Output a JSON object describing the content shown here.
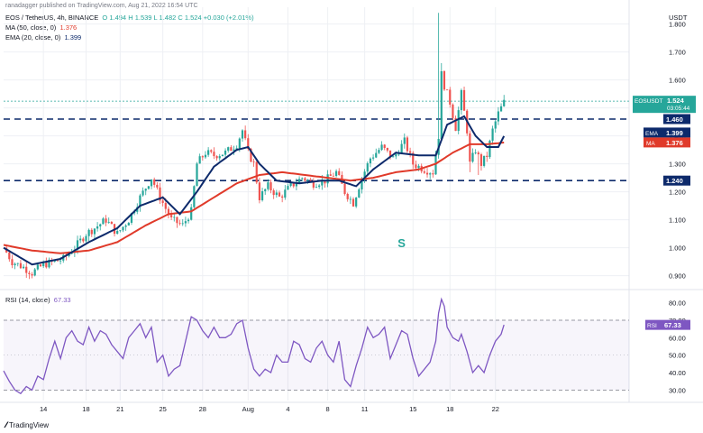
{
  "attribution": "ranadagger published on TradingView.com, Aug 21, 2022 16:54 UTC",
  "legend": {
    "symbol": "EOS / TetherUS, 4h, BINANCE",
    "ohlc": "O 1.494 H 1.539 L 1.482 C 1.524 +0.030 (+2.01%)",
    "ma": "MA (50, close, 0)",
    "ma_value": "1.376",
    "ema": "EMA (20, close, 0)",
    "ema_value": "1.399",
    "rsi": "RSI (14, close)",
    "rsi_value": "67.33"
  },
  "watermark": "TradingView",
  "colors": {
    "up": "#26a69a",
    "down": "#ef5350",
    "ema": "#0d2a6b",
    "ma": "#e03a2a",
    "rsi": "#7e57c2",
    "hline": "#0d2a6b",
    "grid": "#eef0f4",
    "axis_text": "#131722"
  },
  "chart_data": [
    {
      "type": "candlestick",
      "currency": "USDT",
      "yticks": [
        "0.900",
        "1.000",
        "1.100",
        "1.200",
        "1.300",
        "1.400",
        "1.500",
        "1.600",
        "1.700",
        "1.800"
      ],
      "ylim": [
        0.86,
        1.86
      ],
      "xticks": [
        "14",
        "18",
        "21",
        "25",
        "28",
        "Aug",
        "4",
        "8",
        "11",
        "15",
        "18",
        "22"
      ],
      "xlim": [
        0,
        220
      ],
      "xtick_positions": [
        14,
        29,
        41,
        56,
        70,
        86,
        100,
        114,
        127,
        144,
        157,
        173
      ],
      "grid": true,
      "annotation": "S",
      "horizontal_lines": [
        {
          "value": 1.46,
          "label": "1.460",
          "style": "dashed"
        },
        {
          "value": 1.24,
          "label": "1.240",
          "style": "dashed"
        }
      ],
      "price_label": {
        "name": "EOSUSDT",
        "value": "1.524",
        "countdown": "03:05:44"
      },
      "ema_label": {
        "name": "EMA",
        "value": "1.399"
      },
      "ma_label": {
        "name": "MA",
        "value": "1.376"
      },
      "close_anchors": [
        [
          0,
          1.0
        ],
        [
          3,
          0.95
        ],
        [
          7,
          0.93
        ],
        [
          10,
          0.91
        ],
        [
          14,
          0.94
        ],
        [
          18,
          0.95
        ],
        [
          21,
          0.96
        ],
        [
          25,
          1.0
        ],
        [
          29,
          1.05
        ],
        [
          32,
          1.07
        ],
        [
          36,
          1.1
        ],
        [
          40,
          1.05
        ],
        [
          44,
          1.1
        ],
        [
          48,
          1.18
        ],
        [
          52,
          1.25
        ],
        [
          55,
          1.18
        ],
        [
          59,
          1.1
        ],
        [
          63,
          1.08
        ],
        [
          66,
          1.13
        ],
        [
          68,
          1.3
        ],
        [
          71,
          1.34
        ],
        [
          74,
          1.33
        ],
        [
          78,
          1.34
        ],
        [
          82,
          1.37
        ],
        [
          84,
          1.42
        ],
        [
          86,
          1.34
        ],
        [
          88,
          1.3
        ],
        [
          90,
          1.18
        ],
        [
          93,
          1.22
        ],
        [
          97,
          1.18
        ],
        [
          101,
          1.22
        ],
        [
          105,
          1.25
        ],
        [
          109,
          1.23
        ],
        [
          113,
          1.24
        ],
        [
          117,
          1.27
        ],
        [
          120,
          1.2
        ],
        [
          123,
          1.16
        ],
        [
          126,
          1.25
        ],
        [
          129,
          1.32
        ],
        [
          133,
          1.36
        ],
        [
          137,
          1.32
        ],
        [
          141,
          1.38
        ],
        [
          144,
          1.3
        ],
        [
          148,
          1.28
        ],
        [
          151,
          1.27
        ],
        [
          153,
          1.4
        ],
        [
          154,
          1.62
        ],
        [
          155,
          1.58
        ],
        [
          157,
          1.52
        ],
        [
          159,
          1.43
        ],
        [
          161,
          1.55
        ],
        [
          163,
          1.42
        ],
        [
          164,
          1.3
        ],
        [
          166,
          1.35
        ],
        [
          168,
          1.3
        ],
        [
          170,
          1.33
        ],
        [
          172,
          1.42
        ],
        [
          174,
          1.48
        ],
        [
          176,
          1.52
        ]
      ],
      "wick_spikes": [
        [
          153,
          1.84
        ],
        [
          154,
          1.66
        ],
        [
          158,
          1.48
        ],
        [
          161,
          1.56
        ],
        [
          164,
          1.27
        ],
        [
          167,
          1.26
        ]
      ],
      "ema_anchors": [
        [
          0,
          1.0
        ],
        [
          10,
          0.94
        ],
        [
          20,
          0.96
        ],
        [
          30,
          1.02
        ],
        [
          40,
          1.07
        ],
        [
          48,
          1.15
        ],
        [
          56,
          1.18
        ],
        [
          62,
          1.12
        ],
        [
          68,
          1.2
        ],
        [
          74,
          1.29
        ],
        [
          82,
          1.35
        ],
        [
          86,
          1.36
        ],
        [
          90,
          1.3
        ],
        [
          96,
          1.24
        ],
        [
          104,
          1.23
        ],
        [
          112,
          1.24
        ],
        [
          118,
          1.24
        ],
        [
          124,
          1.22
        ],
        [
          130,
          1.28
        ],
        [
          138,
          1.34
        ],
        [
          146,
          1.33
        ],
        [
          152,
          1.33
        ],
        [
          156,
          1.44
        ],
        [
          162,
          1.47
        ],
        [
          166,
          1.4
        ],
        [
          170,
          1.36
        ],
        [
          174,
          1.36
        ],
        [
          176,
          1.399
        ]
      ],
      "ma_anchors": [
        [
          0,
          1.01
        ],
        [
          10,
          0.99
        ],
        [
          20,
          0.98
        ],
        [
          30,
          0.99
        ],
        [
          40,
          1.02
        ],
        [
          50,
          1.08
        ],
        [
          58,
          1.12
        ],
        [
          66,
          1.13
        ],
        [
          74,
          1.18
        ],
        [
          82,
          1.23
        ],
        [
          90,
          1.26
        ],
        [
          98,
          1.27
        ],
        [
          106,
          1.26
        ],
        [
          114,
          1.25
        ],
        [
          122,
          1.24
        ],
        [
          130,
          1.25
        ],
        [
          138,
          1.27
        ],
        [
          146,
          1.28
        ],
        [
          152,
          1.3
        ],
        [
          158,
          1.34
        ],
        [
          164,
          1.37
        ],
        [
          170,
          1.37
        ],
        [
          176,
          1.376
        ]
      ]
    },
    {
      "type": "line",
      "title": "RSI (14, close)",
      "yticks": [
        "30.00",
        "40.00",
        "50.00",
        "60.00",
        "70.00",
        "80.00"
      ],
      "ylim": [
        24,
        86
      ],
      "band": [
        30,
        70
      ],
      "current": "67.33",
      "rsi_anchors": [
        [
          0,
          41
        ],
        [
          2,
          35
        ],
        [
          4,
          30
        ],
        [
          6,
          28
        ],
        [
          8,
          32
        ],
        [
          10,
          30
        ],
        [
          12,
          38
        ],
        [
          14,
          36
        ],
        [
          16,
          48
        ],
        [
          18,
          58
        ],
        [
          20,
          48
        ],
        [
          22,
          60
        ],
        [
          24,
          64
        ],
        [
          26,
          58
        ],
        [
          28,
          56
        ],
        [
          30,
          66
        ],
        [
          32,
          58
        ],
        [
          34,
          64
        ],
        [
          36,
          62
        ],
        [
          38,
          56
        ],
        [
          40,
          52
        ],
        [
          42,
          48
        ],
        [
          44,
          60
        ],
        [
          46,
          64
        ],
        [
          48,
          68
        ],
        [
          50,
          60
        ],
        [
          52,
          66
        ],
        [
          54,
          46
        ],
        [
          56,
          50
        ],
        [
          58,
          38
        ],
        [
          60,
          42
        ],
        [
          62,
          44
        ],
        [
          64,
          58
        ],
        [
          66,
          72
        ],
        [
          68,
          70
        ],
        [
          70,
          64
        ],
        [
          72,
          60
        ],
        [
          74,
          66
        ],
        [
          76,
          60
        ],
        [
          78,
          60
        ],
        [
          80,
          62
        ],
        [
          82,
          68
        ],
        [
          84,
          70
        ],
        [
          86,
          54
        ],
        [
          88,
          42
        ],
        [
          90,
          38
        ],
        [
          92,
          42
        ],
        [
          94,
          40
        ],
        [
          96,
          50
        ],
        [
          98,
          46
        ],
        [
          100,
          46
        ],
        [
          102,
          58
        ],
        [
          104,
          56
        ],
        [
          106,
          48
        ],
        [
          108,
          46
        ],
        [
          110,
          54
        ],
        [
          112,
          58
        ],
        [
          114,
          50
        ],
        [
          116,
          46
        ],
        [
          118,
          58
        ],
        [
          120,
          36
        ],
        [
          122,
          32
        ],
        [
          124,
          44
        ],
        [
          126,
          54
        ],
        [
          128,
          66
        ],
        [
          130,
          60
        ],
        [
          132,
          62
        ],
        [
          134,
          66
        ],
        [
          136,
          48
        ],
        [
          138,
          56
        ],
        [
          140,
          64
        ],
        [
          142,
          62
        ],
        [
          144,
          48
        ],
        [
          146,
          38
        ],
        [
          148,
          42
        ],
        [
          150,
          46
        ],
        [
          152,
          58
        ],
        [
          153,
          74
        ],
        [
          154,
          82
        ],
        [
          155,
          78
        ],
        [
          156,
          66
        ],
        [
          158,
          60
        ],
        [
          160,
          58
        ],
        [
          161,
          62
        ],
        [
          163,
          52
        ],
        [
          165,
          40
        ],
        [
          167,
          44
        ],
        [
          169,
          40
        ],
        [
          171,
          50
        ],
        [
          173,
          58
        ],
        [
          175,
          62
        ],
        [
          176,
          67.33
        ]
      ]
    }
  ]
}
